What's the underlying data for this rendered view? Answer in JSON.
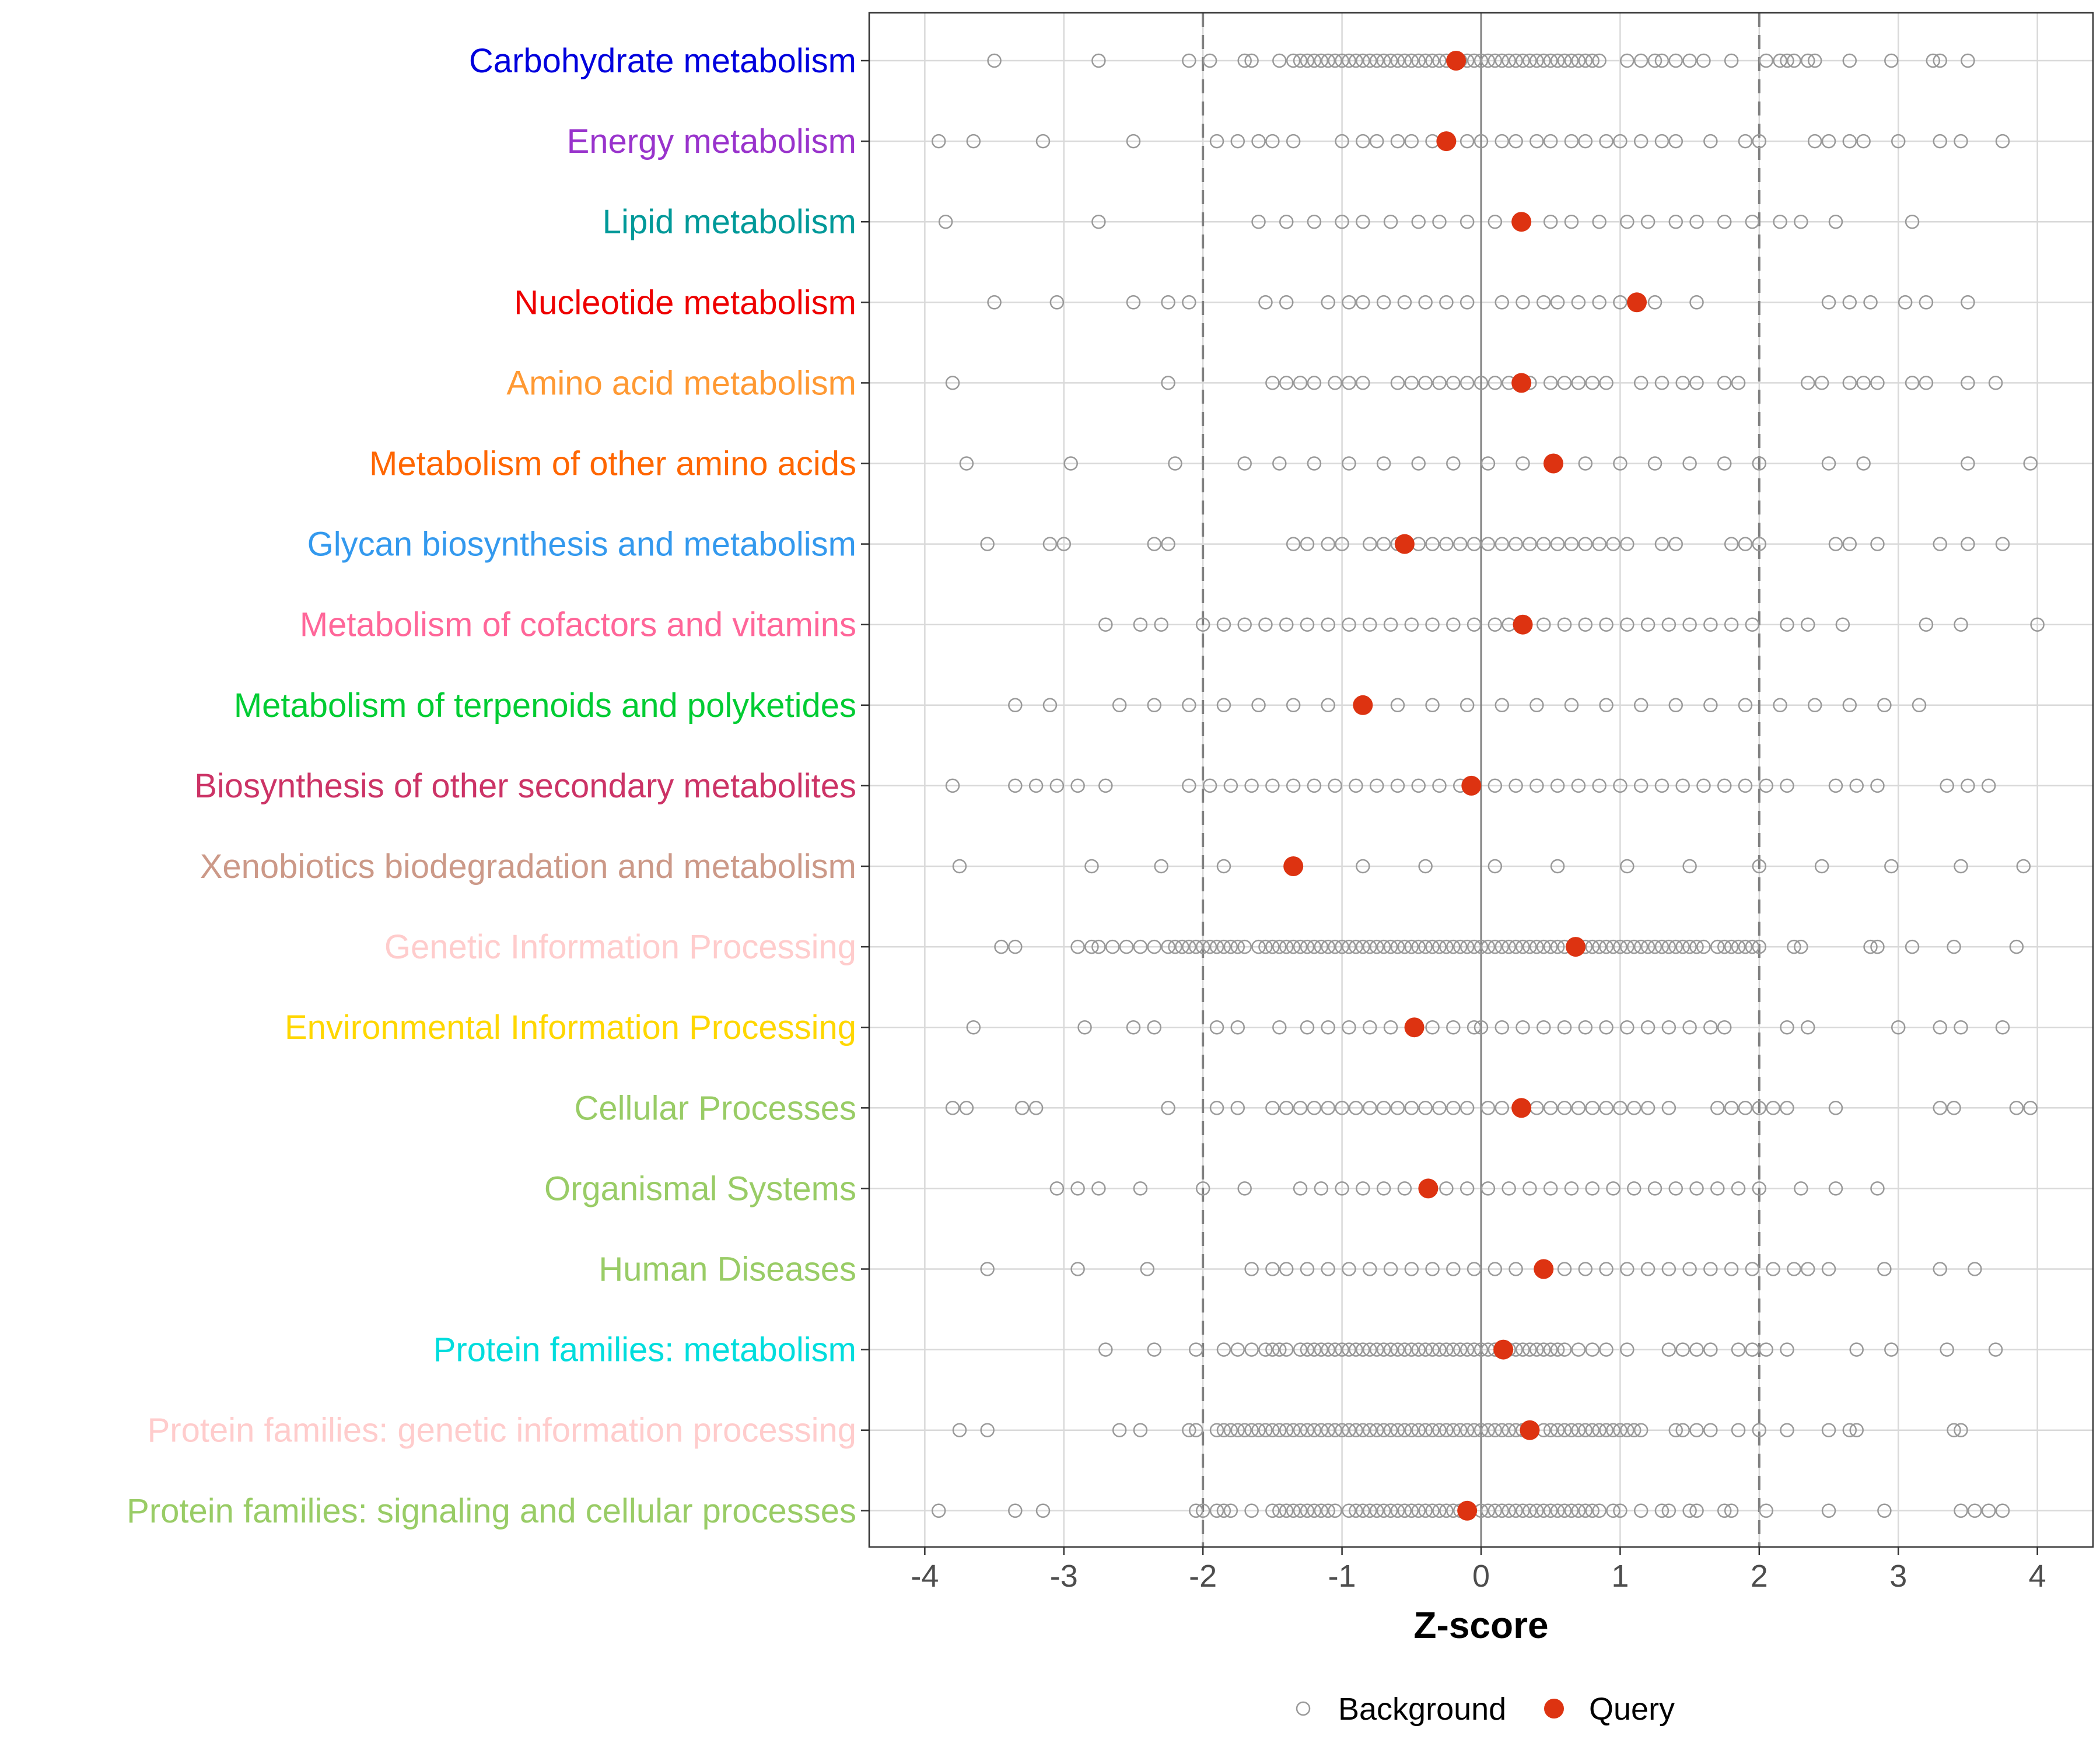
{
  "chart_data": {
    "type": "scatter",
    "xlabel": "Z-score",
    "xlim": [
      -4.4,
      4.4
    ],
    "xticks": [
      -4,
      -3,
      -2,
      -1,
      0,
      1,
      2,
      3,
      4
    ],
    "xtick_labels": [
      "-4",
      "-3",
      "-2",
      "-1",
      "0",
      "1",
      "2",
      "3",
      "4"
    ],
    "reference_lines": {
      "solid": [
        0
      ],
      "dashed": [
        -2,
        2
      ]
    },
    "grid": true,
    "legend": {
      "position": "bottom",
      "entries": [
        {
          "key": "background",
          "label": "Background",
          "marker": "open-circle",
          "color": "#999999"
        },
        {
          "key": "query",
          "label": "Query",
          "marker": "filled-circle",
          "color": "#dd3311"
        }
      ]
    },
    "categories": [
      {
        "name": "Carbohydrate metabolism",
        "color": "#0000dd",
        "query": -0.18,
        "background": [
          -3.5,
          -2.75,
          -2.1,
          -1.95,
          -1.7,
          -1.65,
          -1.45,
          -1.35,
          -1.3,
          -1.25,
          -1.2,
          -1.15,
          -1.1,
          -1.05,
          -1.0,
          -0.95,
          -0.9,
          -0.85,
          -0.8,
          -0.75,
          -0.7,
          -0.65,
          -0.6,
          -0.55,
          -0.5,
          -0.45,
          -0.4,
          -0.35,
          -0.3,
          -0.25,
          -0.2,
          -0.15,
          -0.1,
          -0.05,
          0.0,
          0.05,
          0.1,
          0.15,
          0.2,
          0.25,
          0.3,
          0.35,
          0.4,
          0.45,
          0.5,
          0.55,
          0.6,
          0.65,
          0.7,
          0.75,
          0.8,
          0.85,
          1.05,
          1.15,
          1.25,
          1.3,
          1.4,
          1.5,
          1.6,
          1.8,
          2.05,
          2.15,
          2.2,
          2.25,
          2.35,
          2.4,
          2.65,
          2.95,
          3.25,
          3.3,
          3.5
        ]
      },
      {
        "name": "Energy metabolism",
        "color": "#9933cc",
        "query": -0.25,
        "background": [
          -3.9,
          -3.65,
          -3.15,
          -2.5,
          -1.9,
          -1.75,
          -1.6,
          -1.5,
          -1.35,
          -1.0,
          -0.85,
          -0.75,
          -0.6,
          -0.5,
          -0.35,
          -0.1,
          0.0,
          0.15,
          0.25,
          0.4,
          0.5,
          0.65,
          0.75,
          0.9,
          1.0,
          1.15,
          1.3,
          1.4,
          1.65,
          1.9,
          2.0,
          2.4,
          2.5,
          2.65,
          2.75,
          3.0,
          3.3,
          3.45,
          3.75
        ]
      },
      {
        "name": "Lipid metabolism",
        "color": "#009999",
        "query": 0.29,
        "background": [
          -3.85,
          -2.75,
          -1.6,
          -1.4,
          -1.2,
          -1.0,
          -0.85,
          -0.65,
          -0.45,
          -0.3,
          -0.1,
          0.1,
          0.3,
          0.5,
          0.65,
          0.85,
          1.05,
          1.2,
          1.4,
          1.55,
          1.75,
          1.95,
          2.15,
          2.3,
          2.55,
          3.1
        ]
      },
      {
        "name": "Nucleotide metabolism",
        "color": "#ee0000",
        "query": 1.12,
        "background": [
          -3.5,
          -3.05,
          -2.5,
          -2.25,
          -2.1,
          -1.55,
          -1.4,
          -1.1,
          -0.95,
          -0.85,
          -0.7,
          -0.55,
          -0.4,
          -0.25,
          -0.1,
          0.15,
          0.3,
          0.45,
          0.55,
          0.7,
          0.85,
          1.0,
          1.25,
          1.55,
          2.5,
          2.65,
          2.8,
          3.05,
          3.2,
          3.5
        ]
      },
      {
        "name": "Amino acid metabolism",
        "color": "#ff9933",
        "query": 0.29,
        "background": [
          -3.8,
          -2.25,
          -1.5,
          -1.4,
          -1.3,
          -1.2,
          -1.05,
          -0.95,
          -0.85,
          -0.6,
          -0.5,
          -0.4,
          -0.3,
          -0.2,
          -0.1,
          0.0,
          0.1,
          0.2,
          0.35,
          0.5,
          0.6,
          0.7,
          0.8,
          0.9,
          1.15,
          1.3,
          1.45,
          1.55,
          1.75,
          1.85,
          2.35,
          2.45,
          2.65,
          2.75,
          2.85,
          3.1,
          3.2,
          3.5,
          3.7
        ]
      },
      {
        "name": "Metabolism of other amino acids",
        "color": "#ff6600",
        "query": 0.52,
        "background": [
          -3.7,
          -2.95,
          -2.2,
          -1.7,
          -1.45,
          -1.2,
          -0.95,
          -0.7,
          -0.45,
          -0.2,
          0.05,
          0.3,
          0.75,
          1.0,
          1.25,
          1.5,
          1.75,
          2.0,
          2.5,
          2.75,
          3.5,
          3.95
        ]
      },
      {
        "name": "Glycan biosynthesis and metabolism",
        "color": "#3399ee",
        "query": -0.55,
        "background": [
          -3.55,
          -3.1,
          -3.0,
          -2.35,
          -2.25,
          -1.35,
          -1.25,
          -1.1,
          -1.0,
          -0.8,
          -0.7,
          -0.6,
          -0.45,
          -0.35,
          -0.25,
          -0.15,
          -0.05,
          0.05,
          0.15,
          0.25,
          0.35,
          0.45,
          0.55,
          0.65,
          0.75,
          0.85,
          0.95,
          1.05,
          1.3,
          1.4,
          1.8,
          1.9,
          2.0,
          2.55,
          2.65,
          2.85,
          3.3,
          3.5,
          3.75
        ]
      },
      {
        "name": "Metabolism of cofactors and vitamins",
        "color": "#ff6699",
        "query": 0.3,
        "background": [
          -2.7,
          -2.45,
          -2.3,
          -2.0,
          -1.85,
          -1.7,
          -1.55,
          -1.4,
          -1.25,
          -1.1,
          -0.95,
          -0.8,
          -0.65,
          -0.5,
          -0.35,
          -0.2,
          -0.05,
          0.1,
          0.2,
          0.45,
          0.6,
          0.75,
          0.9,
          1.05,
          1.2,
          1.35,
          1.5,
          1.65,
          1.8,
          1.95,
          2.2,
          2.35,
          2.6,
          3.2,
          3.45,
          4.0
        ]
      },
      {
        "name": "Metabolism of terpenoids and polyketides",
        "color": "#00cc33",
        "query": -0.85,
        "background": [
          -3.35,
          -3.1,
          -2.6,
          -2.35,
          -2.1,
          -1.85,
          -1.6,
          -1.35,
          -1.1,
          -0.6,
          -0.35,
          -0.1,
          0.15,
          0.4,
          0.65,
          0.9,
          1.15,
          1.4,
          1.65,
          1.9,
          2.15,
          2.4,
          2.65,
          2.9,
          3.15
        ]
      },
      {
        "name": "Biosynthesis of other secondary metabolites",
        "color": "#cc3366",
        "query": -0.07,
        "background": [
          -3.8,
          -3.35,
          -3.2,
          -3.05,
          -2.9,
          -2.7,
          -2.1,
          -1.95,
          -1.8,
          -1.65,
          -1.5,
          -1.35,
          -1.2,
          -1.05,
          -0.9,
          -0.75,
          -0.6,
          -0.45,
          -0.3,
          -0.15,
          0.1,
          0.25,
          0.4,
          0.55,
          0.7,
          0.85,
          1.0,
          1.15,
          1.3,
          1.45,
          1.6,
          1.75,
          1.9,
          2.05,
          2.2,
          2.55,
          2.7,
          2.85,
          3.35,
          3.5,
          3.65
        ]
      },
      {
        "name": "Xenobiotics biodegradation and metabolism",
        "color": "#cc9988",
        "query": -1.35,
        "background": [
          -3.75,
          -2.8,
          -2.3,
          -1.85,
          -0.85,
          -0.4,
          0.1,
          0.55,
          1.05,
          1.5,
          2.0,
          2.45,
          2.95,
          3.45,
          3.9
        ]
      },
      {
        "name": "Genetic Information Processing",
        "color": "#ffcccc",
        "query": 0.68,
        "background": [
          -3.45,
          -3.35,
          -2.9,
          -2.8,
          -2.75,
          -2.65,
          -2.55,
          -2.45,
          -2.35,
          -2.25,
          -2.2,
          -2.15,
          -2.1,
          -2.05,
          -2.0,
          -1.95,
          -1.9,
          -1.85,
          -1.8,
          -1.75,
          -1.7,
          -1.6,
          -1.55,
          -1.5,
          -1.45,
          -1.4,
          -1.35,
          -1.3,
          -1.25,
          -1.2,
          -1.15,
          -1.1,
          -1.05,
          -1.0,
          -0.95,
          -0.9,
          -0.85,
          -0.8,
          -0.75,
          -0.7,
          -0.65,
          -0.6,
          -0.55,
          -0.5,
          -0.45,
          -0.4,
          -0.35,
          -0.3,
          -0.25,
          -0.2,
          -0.15,
          -0.1,
          -0.05,
          0.0,
          0.05,
          0.1,
          0.15,
          0.2,
          0.25,
          0.3,
          0.35,
          0.4,
          0.45,
          0.5,
          0.55,
          0.6,
          0.75,
          0.8,
          0.85,
          0.9,
          0.95,
          1.0,
          1.05,
          1.1,
          1.15,
          1.2,
          1.25,
          1.3,
          1.35,
          1.4,
          1.45,
          1.5,
          1.55,
          1.6,
          1.7,
          1.75,
          1.8,
          1.85,
          1.9,
          1.95,
          2.0,
          2.25,
          2.3,
          2.8,
          2.85,
          3.1,
          3.4,
          3.85
        ]
      },
      {
        "name": "Environmental Information Processing",
        "color": "#ffd700",
        "query": -0.48,
        "background": [
          -3.65,
          -2.85,
          -2.5,
          -2.35,
          -1.9,
          -1.75,
          -1.45,
          -1.25,
          -1.1,
          -0.95,
          -0.8,
          -0.65,
          -0.35,
          -0.2,
          -0.05,
          0.0,
          0.15,
          0.3,
          0.45,
          0.6,
          0.75,
          0.9,
          1.05,
          1.2,
          1.35,
          1.5,
          1.65,
          1.75,
          2.2,
          2.35,
          3.0,
          3.3,
          3.45,
          3.75
        ]
      },
      {
        "name": "Cellular Processes",
        "color": "#99cc66",
        "query": 0.29,
        "background": [
          -3.8,
          -3.7,
          -3.3,
          -3.2,
          -2.25,
          -1.9,
          -1.75,
          -1.5,
          -1.4,
          -1.3,
          -1.2,
          -1.1,
          -1.0,
          -0.9,
          -0.8,
          -0.7,
          -0.6,
          -0.5,
          -0.4,
          -0.3,
          -0.2,
          -0.1,
          0.05,
          0.15,
          0.4,
          0.5,
          0.6,
          0.7,
          0.8,
          0.9,
          1.0,
          1.1,
          1.2,
          1.35,
          1.7,
          1.8,
          1.9,
          2.0,
          2.1,
          2.2,
          2.55,
          3.3,
          3.4,
          3.85,
          3.95
        ]
      },
      {
        "name": "Organismal Systems",
        "color": "#99cc66",
        "query": -0.38,
        "background": [
          -3.05,
          -2.9,
          -2.75,
          -2.45,
          -2.0,
          -1.7,
          -1.3,
          -1.15,
          -1.0,
          -0.85,
          -0.7,
          -0.55,
          -0.25,
          -0.1,
          0.05,
          0.2,
          0.35,
          0.5,
          0.65,
          0.8,
          0.95,
          1.1,
          1.25,
          1.4,
          1.55,
          1.7,
          1.85,
          2.0,
          2.3,
          2.55,
          2.85
        ]
      },
      {
        "name": "Human Diseases",
        "color": "#99cc66",
        "query": 0.45,
        "background": [
          -3.55,
          -2.9,
          -2.4,
          -1.65,
          -1.5,
          -1.4,
          -1.25,
          -1.1,
          -0.95,
          -0.8,
          -0.65,
          -0.5,
          -0.35,
          -0.2,
          -0.05,
          0.1,
          0.25,
          0.6,
          0.75,
          0.9,
          1.05,
          1.2,
          1.35,
          1.5,
          1.65,
          1.8,
          1.95,
          2.1,
          2.25,
          2.35,
          2.5,
          2.9,
          3.3,
          3.55
        ]
      },
      {
        "name": "Protein families: metabolism",
        "color": "#00dddd",
        "query": 0.16,
        "background": [
          -2.7,
          -2.35,
          -2.05,
          -1.85,
          -1.75,
          -1.65,
          -1.55,
          -1.5,
          -1.45,
          -1.4,
          -1.3,
          -1.25,
          -1.2,
          -1.15,
          -1.1,
          -1.05,
          -1.0,
          -0.95,
          -0.9,
          -0.85,
          -0.8,
          -0.75,
          -0.7,
          -0.65,
          -0.6,
          -0.55,
          -0.5,
          -0.45,
          -0.4,
          -0.35,
          -0.3,
          -0.25,
          -0.2,
          -0.15,
          -0.1,
          -0.05,
          0.0,
          0.05,
          0.1,
          0.2,
          0.25,
          0.3,
          0.35,
          0.4,
          0.45,
          0.5,
          0.55,
          0.6,
          0.7,
          0.8,
          0.9,
          1.05,
          1.35,
          1.45,
          1.55,
          1.65,
          1.85,
          1.95,
          2.05,
          2.2,
          2.7,
          2.95,
          3.35,
          3.7
        ]
      },
      {
        "name": "Protein families: genetic information processing",
        "color": "#ffcccc",
        "query": 0.35,
        "background": [
          -3.75,
          -3.55,
          -2.6,
          -2.45,
          -2.1,
          -2.05,
          -1.9,
          -1.85,
          -1.8,
          -1.75,
          -1.7,
          -1.65,
          -1.6,
          -1.55,
          -1.5,
          -1.45,
          -1.4,
          -1.35,
          -1.3,
          -1.25,
          -1.2,
          -1.15,
          -1.1,
          -1.05,
          -1.0,
          -0.95,
          -0.9,
          -0.85,
          -0.8,
          -0.75,
          -0.7,
          -0.65,
          -0.6,
          -0.55,
          -0.5,
          -0.45,
          -0.4,
          -0.35,
          -0.3,
          -0.25,
          -0.2,
          -0.15,
          -0.1,
          -0.05,
          0.0,
          0.05,
          0.1,
          0.15,
          0.2,
          0.25,
          0.3,
          0.45,
          0.5,
          0.55,
          0.6,
          0.65,
          0.7,
          0.75,
          0.8,
          0.85,
          0.9,
          0.95,
          1.0,
          1.05,
          1.1,
          1.15,
          1.4,
          1.45,
          1.55,
          1.65,
          1.85,
          2.0,
          2.2,
          2.5,
          2.65,
          2.7,
          3.4,
          3.45
        ]
      },
      {
        "name": "Protein families: signaling and cellular processes",
        "color": "#99cc66",
        "query": -0.1,
        "background": [
          -3.9,
          -3.35,
          -3.15,
          -2.05,
          -2.0,
          -1.9,
          -1.85,
          -1.8,
          -1.65,
          -1.5,
          -1.45,
          -1.4,
          -1.35,
          -1.3,
          -1.25,
          -1.2,
          -1.15,
          -1.1,
          -1.05,
          -0.95,
          -0.9,
          -0.85,
          -0.8,
          -0.75,
          -0.7,
          -0.65,
          -0.6,
          -0.55,
          -0.5,
          -0.45,
          -0.4,
          -0.35,
          -0.3,
          -0.25,
          -0.2,
          -0.15,
          0.0,
          0.05,
          0.1,
          0.15,
          0.2,
          0.25,
          0.3,
          0.35,
          0.4,
          0.45,
          0.5,
          0.55,
          0.6,
          0.65,
          0.7,
          0.75,
          0.8,
          0.85,
          0.95,
          1.0,
          1.15,
          1.3,
          1.35,
          1.5,
          1.55,
          1.75,
          1.8,
          2.05,
          2.5,
          2.9,
          3.45,
          3.55,
          3.65,
          3.75
        ]
      }
    ]
  }
}
